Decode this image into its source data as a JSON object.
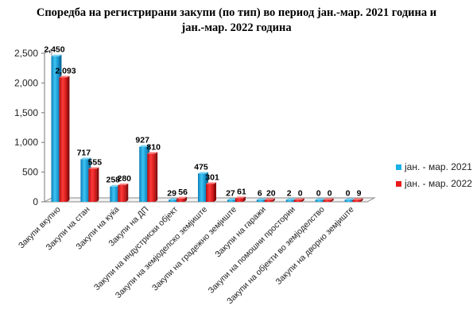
{
  "chart_data": {
    "type": "bar",
    "title": "Споредба на регистрирани закупи (по тип) во период јан.-мар. 2021 година и јан.-мар. 2022 година",
    "title_lines": [
      "Споредба на регистрирани закупи (по тип) во период јан.-мар. 2021 година и",
      "јан.-мар. 2022 година"
    ],
    "categories": [
      "Закупи вкупно",
      "Закупи на стан",
      "Закупи на куќа",
      "Закупи на ДП",
      "Закупи на индустриски објект",
      "Закупи на земјоделско земјиште",
      "Закупи на градежно земјиште",
      "Закупи на гаражи",
      "Закупи на помошни простории",
      "Закупи на објекти во земјоделство",
      "Закупи на дворно земјиште"
    ],
    "series": [
      {
        "name": "јан. - мар. 2021",
        "color": "#1ab0e8",
        "values": [
          2450,
          717,
          258,
          927,
          29,
          475,
          27,
          6,
          2,
          0,
          0
        ],
        "labels": [
          "2,450",
          "717",
          "258",
          "927",
          "29",
          "475",
          "27",
          "6",
          "2",
          "0",
          "0"
        ]
      },
      {
        "name": "јан. - мар. 2022",
        "color": "#e81b1b",
        "values": [
          2093,
          555,
          280,
          810,
          56,
          301,
          61,
          20,
          0,
          0,
          9
        ],
        "labels": [
          "2,093",
          "555",
          "280",
          "810",
          "56",
          "301",
          "61",
          "20",
          "0",
          "0",
          "9"
        ]
      }
    ],
    "yticks": [
      "0",
      "500",
      "1,000",
      "1,500",
      "2,000",
      "2,500"
    ],
    "ylim": [
      0,
      2500
    ],
    "grid": false,
    "legend_position": "right"
  }
}
